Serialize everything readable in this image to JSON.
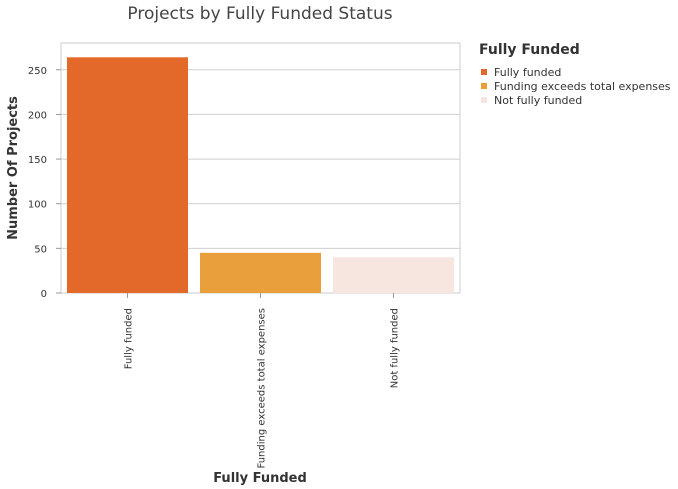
{
  "chart_data": {
    "type": "bar",
    "title": "Projects by Fully Funded Status",
    "xlabel": "Fully Funded",
    "ylabel": "Number Of Projects",
    "categories": [
      "Fully funded",
      "Funding exceeds total expenses",
      "Not fully funded"
    ],
    "values": [
      264,
      45,
      40
    ],
    "colors": [
      "#e2692a",
      "#e99f3c",
      "#f6e6df"
    ],
    "ylim": [
      0,
      280
    ],
    "yticks": [
      0,
      50,
      100,
      150,
      200,
      250
    ],
    "grid": true,
    "legend": {
      "title": "Fully Funded",
      "placement": "right",
      "entries": [
        "Fully funded",
        "Funding exceeds total expenses",
        "Not fully funded"
      ]
    }
  }
}
